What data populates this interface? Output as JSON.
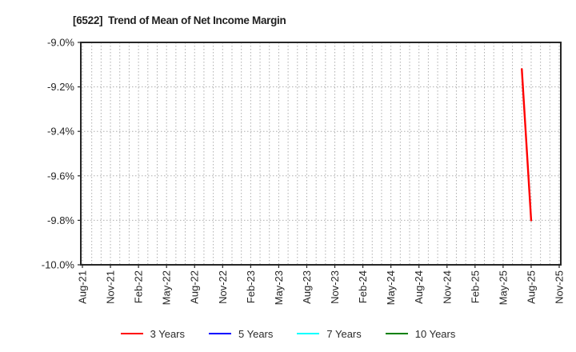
{
  "chart_data": {
    "type": "line",
    "title": "[6522]  Trend of Mean of Net Income Margin",
    "background_color": "#ffffff",
    "y_axis": {
      "min": -10.0,
      "max": -9.0,
      "ticks": [
        {
          "label": "-9.0%",
          "value": -9.0
        },
        {
          "label": "-9.2%",
          "value": -9.2
        },
        {
          "label": "-9.4%",
          "value": -9.4
        },
        {
          "label": "-9.6%",
          "value": -9.6
        },
        {
          "label": "-9.8%",
          "value": -9.8
        },
        {
          "label": "-10.0%",
          "value": -10.0
        }
      ]
    },
    "x_axis": {
      "months_total": 51,
      "minor_gridline_every_months": 1,
      "ticks": [
        {
          "label": "Aug-21",
          "month": 0
        },
        {
          "label": "Nov-21",
          "month": 3
        },
        {
          "label": "Feb-22",
          "month": 6
        },
        {
          "label": "May-22",
          "month": 9
        },
        {
          "label": "Aug-22",
          "month": 12
        },
        {
          "label": "Nov-22",
          "month": 15
        },
        {
          "label": "Feb-23",
          "month": 18
        },
        {
          "label": "May-23",
          "month": 21
        },
        {
          "label": "Aug-23",
          "month": 24
        },
        {
          "label": "Nov-23",
          "month": 27
        },
        {
          "label": "Feb-24",
          "month": 30
        },
        {
          "label": "May-24",
          "month": 33
        },
        {
          "label": "Aug-24",
          "month": 36
        },
        {
          "label": "Nov-24",
          "month": 39
        },
        {
          "label": "Feb-25",
          "month": 42
        },
        {
          "label": "May-25",
          "month": 45
        },
        {
          "label": "Aug-25",
          "month": 48
        },
        {
          "label": "Nov-25",
          "month": 51
        }
      ]
    },
    "grid": {
      "color": "#aeaeae",
      "style": "dotted"
    },
    "axis": {
      "color": "#262626",
      "tick_label_color": "#262626"
    },
    "series": [
      {
        "name": "3 Years",
        "color": "#ff0000",
        "points": [
          {
            "date": "Jul-25",
            "month": 47,
            "value": -9.12
          },
          {
            "date": "Aug-25",
            "month": 48,
            "value": -9.8
          }
        ]
      },
      {
        "name": "5 Years",
        "color": "#0000ff",
        "points": []
      },
      {
        "name": "7 Years",
        "color": "#00ffff",
        "points": []
      },
      {
        "name": "10 Years",
        "color": "#008000",
        "points": []
      }
    ],
    "legend": {
      "position": "bottom-center",
      "items": [
        "3 Years",
        "5 Years",
        "7 Years",
        "10 Years"
      ]
    }
  }
}
